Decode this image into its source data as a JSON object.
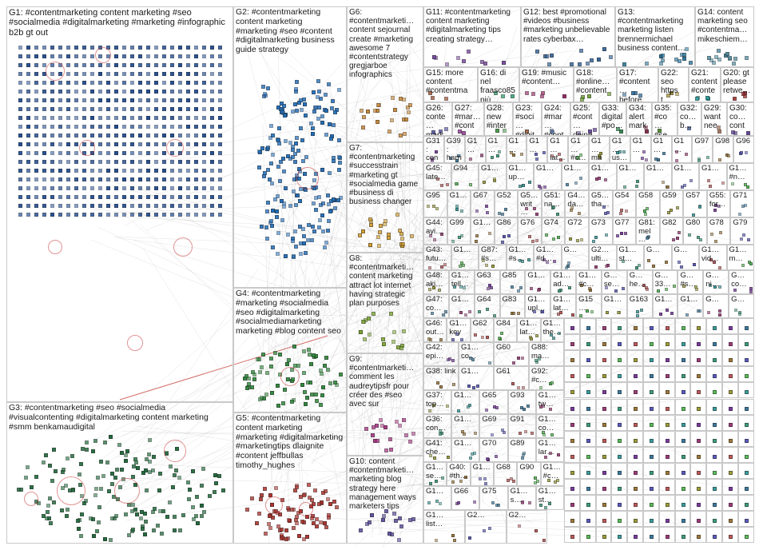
{
  "groups": [
    {
      "id": "G1",
      "label": "G1: #contentmarketing content marketing #seo #socialmedia #digitalmarketing #marketing #infographic b2b gt out",
      "color": "#1f4e9a"
    },
    {
      "id": "G2",
      "label": "G2: #contentmarketing content marketing #marketing #seo #content #digitalmarketing business guide strategy",
      "color": "#1f6fbf"
    },
    {
      "id": "G3",
      "label": "G3: #contentmarketing #seo #socialmedia #visualcontenting #digitalmarketing content marketing #smm benkamaudigital",
      "color": "#1e6b3a"
    },
    {
      "id": "G4",
      "label": "G4: #contentmarketing #marketing #socialmedia #seo #digitalmarketing #socialmediamarketing marketing #blog content seo",
      "color": "#2e8b3a"
    },
    {
      "id": "G5",
      "label": "G5: #contentmarketing content marketing #marketing #digitalmarketing #marketingtips dlaignite #content jeffbullas timothy_hughes",
      "color": "#b0302a"
    },
    {
      "id": "G6",
      "label": "G6: #contentmarketi… content sejournal create #marketing awesome 7 #contentstrategy gregjarboe infographics",
      "color": "#c8822a"
    },
    {
      "id": "G7",
      "label": "G7: #contentmarketing #successtrain #marketing gt #socialmedia game #business di business changer",
      "color": "#d6a030"
    },
    {
      "id": "G8",
      "label": "G8: #contentmarketi… content marketing attract lot internet having strategic plan purposes",
      "color": "#7aa82a"
    },
    {
      "id": "G9",
      "label": "G9: #contentmarketi… comment les audreytipsfr pour créer des #seo avec sur",
      "color": "#b03a8a"
    },
    {
      "id": "G10",
      "label": "G10: content #contentmarketi… marketing blog strategy here management ways marketers tips",
      "color": "#5a4aa0"
    },
    {
      "id": "G11",
      "label": "G11: #contentmarketing content marketing #digitalmarketing tips creating strategy…",
      "color": "#7a4aa0"
    },
    {
      "id": "G12",
      "label": "G12: best #promotional #videos #business #marketing unbelievable rates cyberbax…",
      "color": "#3a6aa0"
    },
    {
      "id": "G13",
      "label": "G13: #contentmarketing marketing listen brennermichael business content…",
      "color": "#2a7aa0"
    },
    {
      "id": "G14",
      "label": "G14: content marketing seo #contentma… mikeschiem…",
      "color": "#4a8aa0"
    },
    {
      "id": "G15",
      "label": "G15: more content #contentma…",
      "color": "#a04a2a"
    },
    {
      "id": "G16",
      "label": "G16: di nel fraasco85 più…",
      "color": "#2aa06a"
    },
    {
      "id": "G19",
      "label": "G19: #music #content…",
      "color": "#a02a6a"
    },
    {
      "id": "G18",
      "label": "G18: #online… #content…",
      "color": "#6aa02a"
    },
    {
      "id": "G17",
      "label": "G17: #content… before…",
      "color": "#2a6aa0"
    },
    {
      "id": "G22",
      "label": "G22: seo https t…",
      "color": "#a08a2a"
    },
    {
      "id": "G21",
      "label": "G21: content #conte…",
      "color": "#2aa0a0"
    },
    {
      "id": "G20",
      "label": "G20: gt please retwe…",
      "color": "#a02a2a"
    },
    {
      "id": "G26",
      "label": "G26: conte… mark…",
      "color": "#4a4aa0"
    },
    {
      "id": "G27",
      "label": "G27: #mar… #cont…",
      "color": "#a04aa0"
    },
    {
      "id": "G28",
      "label": "G28: new #inter…",
      "color": "#4aa04a"
    },
    {
      "id": "G23",
      "label": "G23: #soci… #digit…",
      "color": "#a06a4a"
    },
    {
      "id": "G24",
      "label": "G24: #mar… #cont…",
      "color": "#4a6aa0"
    },
    {
      "id": "G25",
      "label": "G25: #cont… deine…",
      "color": "#6a4aa0"
    },
    {
      "id": "G33",
      "label": "G33: digital #po…",
      "color": "#2a8a4a"
    },
    {
      "id": "G34",
      "label": "G34: alert mark…",
      "color": "#8a2a4a"
    },
    {
      "id": "G35",
      "label": "G35: #co… #se…",
      "color": "#4a8a2a"
    },
    {
      "id": "G32",
      "label": "G32: co… b…",
      "color": "#2a4a8a"
    },
    {
      "id": "G29",
      "label": "G29: want nee…",
      "color": "#8a4a2a"
    },
    {
      "id": "G30",
      "label": "G30: co… cont…",
      "color": "#4a2a8a"
    }
  ],
  "small_groups": [
    "G31: con… mark…",
    "G39: harri…",
    "G1…",
    "G1…",
    "G1…",
    "G1…",
    "G1… lat…",
    "G1… #c…",
    "G1… ma…",
    "G1… us…",
    "G1…",
    "G1…",
    "G1…",
    "G97",
    "G98",
    "G96",
    "G45: late…",
    "G94",
    "G1…",
    "G1… up…",
    "G1…",
    "G1…",
    "G1…",
    "G1…",
    "G1…",
    "G1…",
    "G1…",
    "G1… #n…",
    "G95",
    "G1…",
    "G67",
    "G52",
    "G5… writ…",
    "G51: na…",
    "G4… da…",
    "G5… tha…",
    "G54",
    "G58",
    "G59",
    "G57",
    "G55: for…",
    "G71",
    "G44: ayi…",
    "G99",
    "G1…",
    "G86",
    "G76",
    "G74",
    "G72",
    "G73",
    "G77",
    "G81: mel…",
    "G82",
    "G80",
    "G78",
    "G79",
    "G43: futu…",
    "G1…",
    "G87: #s…",
    "G1… #s…",
    "G1… #d…",
    "G…",
    "G2… ulti…",
    "G1… st…",
    "G…",
    "G…",
    "G1… vid…",
    "G1… m…",
    "G48: aki…",
    "G1… tell…",
    "G63",
    "G85",
    "G1…",
    "G1… ad…",
    "G1… #c…",
    "G… se…",
    "G… he…",
    "G… 33…",
    "G… #s…",
    "G… ni…",
    "G… co…",
    "G47: co…",
    "G1…",
    "G64",
    "G83",
    "G1… upl…",
    "G1… lat…",
    "G15…",
    "G1…",
    "G163",
    "G1…",
    "G1…",
    "G…",
    "G…",
    "G46: out…",
    "G1… key…",
    "G62",
    "G84",
    "G1… lat…",
    "G1… the…",
    "G42: epi…",
    "G1… co…",
    "G60",
    "G88: ma…",
    "G38: link",
    "G1…",
    "G61",
    "G92: #c…",
    "G37: top…",
    "G1…",
    "G65",
    "G93",
    "G1… tw…",
    "G36: con…",
    "G1…",
    "G69",
    "G91",
    "G1… co…",
    "G41: che…",
    "G1…",
    "G70",
    "G89",
    "G1… lar…",
    "G1… se…",
    "G40: #th…",
    "G1…",
    "G68",
    "G90",
    "G1… #c…",
    "G1…",
    "G66",
    "G75",
    "G1… s…",
    "G1… st…",
    "G1… list…",
    "G2…",
    "G2…"
  ]
}
